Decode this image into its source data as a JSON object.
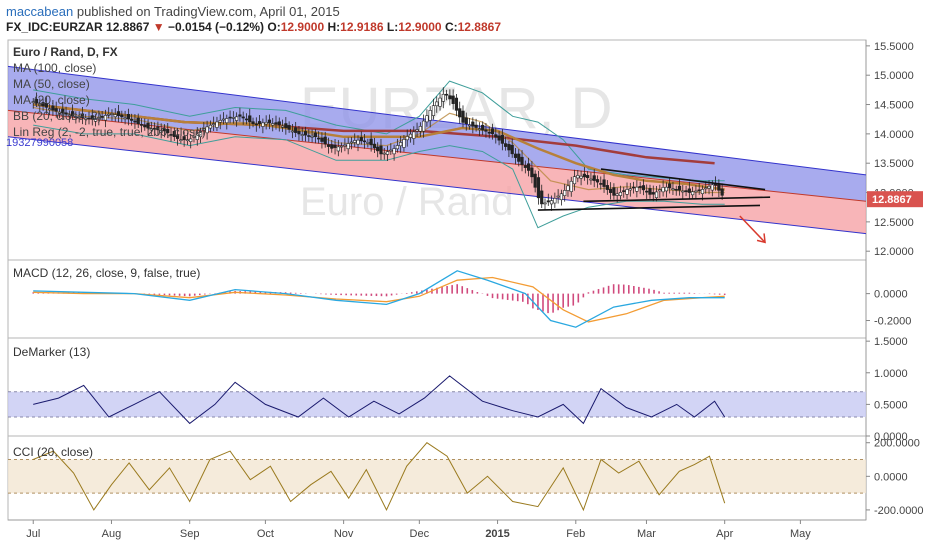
{
  "header": {
    "author": "maccabean",
    "published_text": "published on TradingView.com, April 01, 2015",
    "symbol": "FX_IDC:EURZAR",
    "last": "12.8867",
    "change_arrow": "▼",
    "change": "−0.0154 (−0.12%)",
    "o_label": "O:",
    "o_value": "12.9000",
    "h_label": "H:",
    "h_value": "12.9186",
    "l_label": "L:",
    "l_value": "12.9000",
    "c_label": "C:",
    "c_value": "12.8867"
  },
  "chart_data": [
    {
      "type": "line",
      "panel": "price",
      "title": "Euro / Rand, D, FX",
      "legend": [
        "MA (100, close)",
        "MA (50, close)",
        "MA (20, close)",
        "BB (20, close, 2)",
        "Lin Reg (2, -2, true, true, 200, close)"
      ],
      "lin_reg_value": "19327990058",
      "watermark_symbol": "EURZAR, D",
      "watermark_name": "Euro / Rand",
      "y_ticks": [
        "15.5000",
        "15.0000",
        "14.5000",
        "14.0000",
        "13.5000",
        "13.0000",
        "12.5000",
        "12.0000"
      ],
      "ylim": [
        11.85,
        15.6
      ],
      "price_badge": "12.8867",
      "x_ticks": [
        "Jul",
        "Aug",
        "Sep",
        "Oct",
        "Nov",
        "Dec",
        "2015",
        "Feb",
        "Mar",
        "Apr",
        "May"
      ],
      "x_tick_days": [
        0,
        31,
        62,
        92,
        123,
        153,
        184,
        215,
        243,
        274,
        304
      ],
      "xlim": [
        -10,
        330
      ],
      "close": [
        [
          0,
          14.55
        ],
        [
          8,
          14.4
        ],
        [
          16,
          14.3
        ],
        [
          24,
          14.25
        ],
        [
          31,
          14.35
        ],
        [
          38,
          14.25
        ],
        [
          45,
          14.1
        ],
        [
          52,
          14.05
        ],
        [
          58,
          13.9
        ],
        [
          62,
          13.9
        ],
        [
          68,
          14.1
        ],
        [
          75,
          14.25
        ],
        [
          82,
          14.3
        ],
        [
          88,
          14.15
        ],
        [
          92,
          14.2
        ],
        [
          98,
          14.15
        ],
        [
          105,
          14.0
        ],
        [
          112,
          13.95
        ],
        [
          118,
          13.75
        ],
        [
          123,
          13.8
        ],
        [
          128,
          13.9
        ],
        [
          133,
          13.85
        ],
        [
          138,
          13.65
        ],
        [
          143,
          13.75
        ],
        [
          148,
          13.95
        ],
        [
          153,
          14.1
        ],
        [
          158,
          14.45
        ],
        [
          163,
          14.7
        ],
        [
          166,
          14.55
        ],
        [
          170,
          14.2
        ],
        [
          176,
          14.1
        ],
        [
          182,
          14.0
        ],
        [
          188,
          13.75
        ],
        [
          193,
          13.5
        ],
        [
          197,
          13.35
        ],
        [
          201,
          12.8
        ],
        [
          205,
          12.85
        ],
        [
          210,
          13.0
        ],
        [
          215,
          13.3
        ],
        [
          220,
          13.25
        ],
        [
          225,
          13.15
        ],
        [
          230,
          12.95
        ],
        [
          235,
          13.05
        ],
        [
          240,
          13.1
        ],
        [
          245,
          12.95
        ],
        [
          250,
          13.1
        ],
        [
          255,
          13.05
        ],
        [
          260,
          13.0
        ],
        [
          265,
          13.05
        ],
        [
          270,
          13.15
        ],
        [
          274,
          12.8867
        ]
      ],
      "ma100": [
        [
          0,
          14.5
        ],
        [
          30,
          14.35
        ],
        [
          60,
          14.2
        ],
        [
          92,
          14.15
        ],
        [
          123,
          14.05
        ],
        [
          153,
          14.05
        ],
        [
          184,
          13.95
        ],
        [
          215,
          13.8
        ],
        [
          243,
          13.6
        ],
        [
          270,
          13.5
        ]
      ],
      "ma50": [
        [
          0,
          14.5
        ],
        [
          30,
          14.35
        ],
        [
          60,
          14.2
        ],
        [
          92,
          14.15
        ],
        [
          123,
          13.95
        ],
        [
          153,
          13.95
        ],
        [
          170,
          14.1
        ],
        [
          184,
          14.05
        ],
        [
          200,
          13.75
        ],
        [
          215,
          13.5
        ],
        [
          230,
          13.3
        ],
        [
          243,
          13.2
        ],
        [
          258,
          13.15
        ],
        [
          274,
          13.05
        ]
      ],
      "ma20": [
        [
          0,
          14.45
        ],
        [
          20,
          14.3
        ],
        [
          40,
          14.25
        ],
        [
          62,
          14.05
        ],
        [
          80,
          14.2
        ],
        [
          100,
          14.15
        ],
        [
          120,
          13.85
        ],
        [
          140,
          13.8
        ],
        [
          153,
          14.0
        ],
        [
          165,
          14.35
        ],
        [
          178,
          14.2
        ],
        [
          190,
          13.85
        ],
        [
          205,
          13.2
        ],
        [
          220,
          13.05
        ],
        [
          235,
          13.1
        ],
        [
          250,
          13.05
        ],
        [
          265,
          13.0
        ],
        [
          274,
          13.0
        ]
      ],
      "bb_upper": [
        [
          0,
          14.75
        ],
        [
          20,
          14.6
        ],
        [
          40,
          14.5
        ],
        [
          62,
          14.3
        ],
        [
          80,
          14.45
        ],
        [
          100,
          14.4
        ],
        [
          120,
          14.15
        ],
        [
          140,
          14.0
        ],
        [
          153,
          14.3
        ],
        [
          165,
          14.9
        ],
        [
          178,
          14.7
        ],
        [
          190,
          14.3
        ],
        [
          200,
          14.2
        ],
        [
          210,
          13.9
        ],
        [
          220,
          13.4
        ],
        [
          235,
          13.3
        ],
        [
          250,
          13.25
        ],
        [
          265,
          13.2
        ],
        [
          274,
          13.2
        ]
      ],
      "bb_lower": [
        [
          0,
          14.15
        ],
        [
          20,
          14.0
        ],
        [
          40,
          14.0
        ],
        [
          62,
          13.8
        ],
        [
          80,
          13.95
        ],
        [
          100,
          13.9
        ],
        [
          120,
          13.55
        ],
        [
          140,
          13.55
        ],
        [
          153,
          13.7
        ],
        [
          165,
          13.8
        ],
        [
          178,
          13.7
        ],
        [
          190,
          13.4
        ],
        [
          200,
          12.4
        ],
        [
          210,
          12.6
        ],
        [
          220,
          12.75
        ],
        [
          235,
          12.85
        ],
        [
          250,
          12.85
        ],
        [
          265,
          12.8
        ],
        [
          274,
          12.8
        ]
      ],
      "channel_upper": [
        [
          -10,
          15.15
        ],
        [
          330,
          13.3
        ]
      ],
      "channel_mid": [
        [
          -10,
          14.4
        ],
        [
          330,
          12.85
        ]
      ],
      "channel_lower": [
        [
          -10,
          13.95
        ],
        [
          330,
          12.3
        ]
      ],
      "trend_upper": [
        [
          225,
          13.4
        ],
        [
          290,
          13.05
        ]
      ],
      "trend_lower": [
        [
          200,
          12.7
        ],
        [
          288,
          12.78
        ]
      ],
      "trend_support": [
        [
          218,
          12.85
        ],
        [
          292,
          12.92
        ]
      ],
      "forecast_arrow": [
        [
          280,
          12.6
        ],
        [
          290,
          12.15
        ]
      ]
    },
    {
      "type": "line",
      "panel": "macd",
      "title": "MACD (12, 26, close, 9, false, true)",
      "y_ticks": [
        "0.0000",
        "-0.2000"
      ],
      "ylim": [
        -0.33,
        0.25
      ],
      "macd": [
        [
          0,
          0.02
        ],
        [
          20,
          0.01
        ],
        [
          40,
          0.0
        ],
        [
          62,
          -0.05
        ],
        [
          80,
          0.03
        ],
        [
          100,
          0.0
        ],
        [
          120,
          -0.05
        ],
        [
          140,
          -0.08
        ],
        [
          153,
          0.0
        ],
        [
          168,
          0.17
        ],
        [
          180,
          0.1
        ],
        [
          195,
          0.0
        ],
        [
          205,
          -0.2
        ],
        [
          215,
          -0.25
        ],
        [
          230,
          -0.1
        ],
        [
          245,
          -0.05
        ],
        [
          260,
          -0.03
        ],
        [
          274,
          -0.03
        ]
      ],
      "signal": [
        [
          0,
          0.01
        ],
        [
          20,
          0.0
        ],
        [
          40,
          0.0
        ],
        [
          62,
          -0.03
        ],
        [
          80,
          0.01
        ],
        [
          100,
          -0.01
        ],
        [
          120,
          -0.04
        ],
        [
          140,
          -0.06
        ],
        [
          153,
          -0.02
        ],
        [
          168,
          0.1
        ],
        [
          182,
          0.12
        ],
        [
          198,
          0.05
        ],
        [
          210,
          -0.12
        ],
        [
          220,
          -0.21
        ],
        [
          235,
          -0.15
        ],
        [
          250,
          -0.05
        ],
        [
          265,
          -0.03
        ],
        [
          274,
          -0.02
        ]
      ]
    },
    {
      "type": "line",
      "panel": "demarker",
      "title": "DeMarker (13)",
      "y_ticks": [
        "1.5000",
        "1.0000",
        "0.5000",
        "0.0000"
      ],
      "ylim": [
        0,
        1.55
      ],
      "band": [
        0.3,
        0.7
      ],
      "values": [
        [
          0,
          0.5
        ],
        [
          10,
          0.6
        ],
        [
          20,
          0.8
        ],
        [
          30,
          0.3
        ],
        [
          40,
          0.5
        ],
        [
          50,
          0.7
        ],
        [
          62,
          0.2
        ],
        [
          72,
          0.5
        ],
        [
          80,
          0.85
        ],
        [
          92,
          0.5
        ],
        [
          105,
          0.3
        ],
        [
          115,
          0.6
        ],
        [
          125,
          0.3
        ],
        [
          135,
          0.55
        ],
        [
          145,
          0.35
        ],
        [
          155,
          0.6
        ],
        [
          165,
          0.95
        ],
        [
          178,
          0.55
        ],
        [
          190,
          0.4
        ],
        [
          200,
          0.3
        ],
        [
          210,
          0.5
        ],
        [
          218,
          0.2
        ],
        [
          225,
          0.75
        ],
        [
          235,
          0.45
        ],
        [
          245,
          0.3
        ],
        [
          255,
          0.5
        ],
        [
          262,
          0.3
        ],
        [
          270,
          0.55
        ],
        [
          274,
          0.3
        ]
      ]
    },
    {
      "type": "line",
      "panel": "cci",
      "title": "CCI (20, close)",
      "y_ticks": [
        "200.0000",
        "0.0000",
        "-200.0000"
      ],
      "ylim": [
        -260,
        240
      ],
      "band": [
        -100,
        100
      ],
      "values": [
        [
          0,
          100
        ],
        [
          8,
          150
        ],
        [
          16,
          20
        ],
        [
          24,
          -200
        ],
        [
          31,
          -50
        ],
        [
          38,
          80
        ],
        [
          46,
          -80
        ],
        [
          54,
          50
        ],
        [
          62,
          -150
        ],
        [
          70,
          100
        ],
        [
          78,
          150
        ],
        [
          86,
          -20
        ],
        [
          94,
          60
        ],
        [
          102,
          -150
        ],
        [
          110,
          -50
        ],
        [
          118,
          30
        ],
        [
          125,
          -130
        ],
        [
          132,
          40
        ],
        [
          140,
          -200
        ],
        [
          148,
          60
        ],
        [
          156,
          200
        ],
        [
          164,
          120
        ],
        [
          172,
          -100
        ],
        [
          180,
          0
        ],
        [
          190,
          -150
        ],
        [
          200,
          -180
        ],
        [
          210,
          50
        ],
        [
          218,
          -200
        ],
        [
          225,
          100
        ],
        [
          232,
          20
        ],
        [
          240,
          90
        ],
        [
          248,
          -110
        ],
        [
          256,
          30
        ],
        [
          262,
          70
        ],
        [
          268,
          120
        ],
        [
          274,
          -160
        ]
      ]
    }
  ],
  "colors": {
    "channel_upper_fill": "#8b8fe8",
    "channel_lower_fill": "#f6a3a6",
    "ma100": "#a33c3c",
    "ma50": "#b7803a",
    "ma20": "#b9883e",
    "bb": "#3f9e9a",
    "candle": "#222222",
    "macd": "#2aa8e0",
    "signal": "#f39c34",
    "hist": "#d04a7d",
    "demarker": "#1a1a6e",
    "demarker_band": "#c7c9f2",
    "cci": "#9a7a1e",
    "cci_band": "#f3e6d2",
    "trend": "#111111",
    "arrow": "#d83a2e",
    "badge": "#d9534f"
  }
}
